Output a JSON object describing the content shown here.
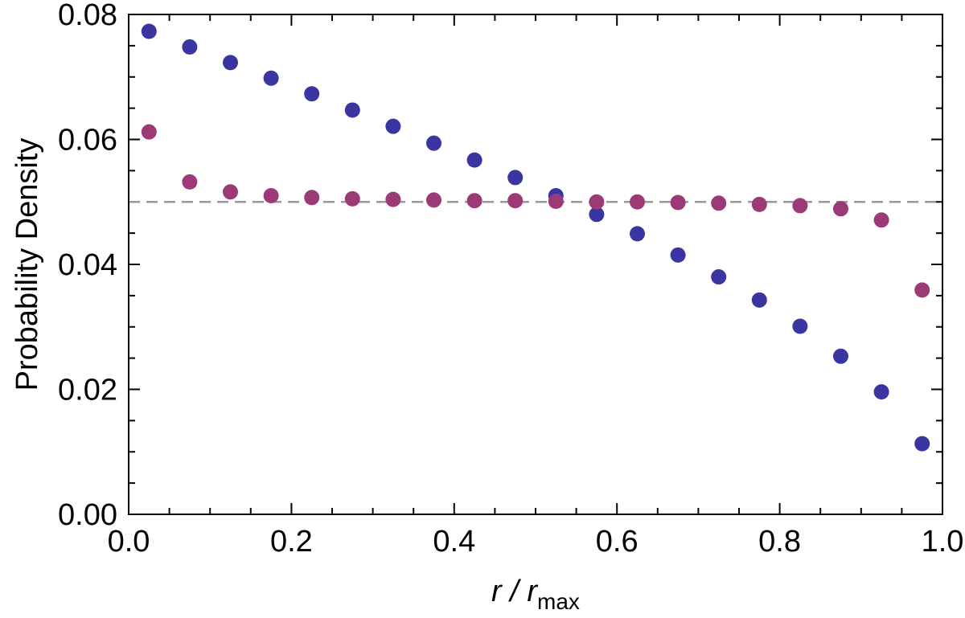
{
  "chart_data": {
    "type": "scatter",
    "title": "",
    "xlabel": {
      "main": "r / r",
      "subscript": "max"
    },
    "ylabel": "Probability Density",
    "xlim": [
      0.0,
      1.0
    ],
    "ylim": [
      0.0,
      0.08
    ],
    "x_ticks": [
      0.0,
      0.2,
      0.4,
      0.6,
      0.8,
      1.0
    ],
    "x_tick_labels": [
      "0.0",
      "0.2",
      "0.4",
      "0.6",
      "0.8",
      "1.0"
    ],
    "y_ticks": [
      0.0,
      0.02,
      0.04,
      0.06,
      0.08
    ],
    "y_tick_labels": [
      "0.00",
      "0.02",
      "0.04",
      "0.06",
      "0.08"
    ],
    "reference_line": {
      "y": 0.05,
      "style": "dashed",
      "color": "#999999"
    },
    "grid": false,
    "x": [
      0.025,
      0.075,
      0.125,
      0.175,
      0.225,
      0.275,
      0.325,
      0.375,
      0.425,
      0.475,
      0.525,
      0.575,
      0.625,
      0.675,
      0.725,
      0.775,
      0.825,
      0.875,
      0.925,
      0.975
    ],
    "series": [
      {
        "name": "blue",
        "color": "#3a35a0",
        "values": [
          0.0773,
          0.0748,
          0.0723,
          0.0698,
          0.0673,
          0.0647,
          0.0621,
          0.0594,
          0.0567,
          0.0539,
          0.051,
          0.048,
          0.0449,
          0.0415,
          0.038,
          0.0343,
          0.0301,
          0.0253,
          0.0196,
          0.0113
        ]
      },
      {
        "name": "magenta",
        "color": "#9c3a78",
        "values": [
          0.0612,
          0.0532,
          0.0516,
          0.051,
          0.0507,
          0.0505,
          0.0504,
          0.0503,
          0.0502,
          0.0502,
          0.0501,
          0.05,
          0.05,
          0.0499,
          0.0498,
          0.0496,
          0.0494,
          0.0489,
          0.0471,
          0.0359
        ]
      }
    ]
  }
}
